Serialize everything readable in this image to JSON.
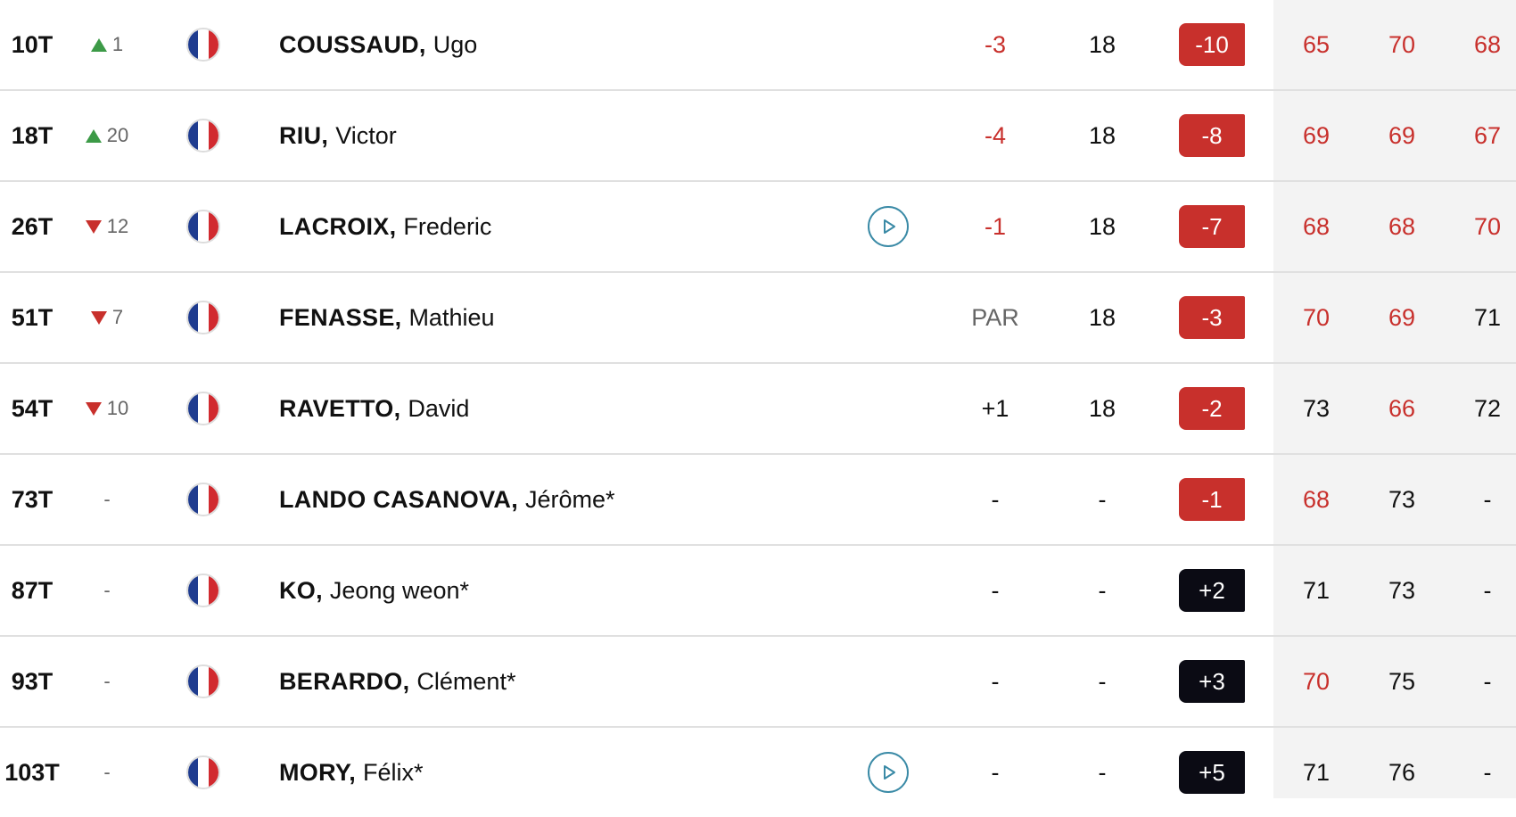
{
  "colors": {
    "under_par": "#c8302c",
    "over_par": "#0b0b14",
    "move_up": "#3c9a47",
    "move_down": "#c8302c",
    "video_accent": "#3a8aa6",
    "round_band": "#f3f3f3"
  },
  "rows": [
    {
      "pos": "10T",
      "move": {
        "dir": "up",
        "value": "1"
      },
      "country": "france-flag-icon",
      "surname": "COUSSAUD,",
      "given": "Ugo",
      "video": false,
      "today": "-3",
      "today_color": "red",
      "thru": "18",
      "total": "-10",
      "total_type": "under",
      "r1": "65",
      "r1_color": "red",
      "r2": "70",
      "r2_color": "red",
      "r3": "68",
      "r3_color": "red"
    },
    {
      "pos": "18T",
      "move": {
        "dir": "up",
        "value": "20"
      },
      "country": "france-flag-icon",
      "surname": "RIU,",
      "given": "Victor",
      "video": false,
      "today": "-4",
      "today_color": "red",
      "thru": "18",
      "total": "-8",
      "total_type": "under",
      "r1": "69",
      "r1_color": "red",
      "r2": "69",
      "r2_color": "red",
      "r3": "67",
      "r3_color": "red"
    },
    {
      "pos": "26T",
      "move": {
        "dir": "down",
        "value": "12"
      },
      "country": "france-flag-icon",
      "surname": "LACROIX,",
      "given": "Frederic",
      "video": true,
      "today": "-1",
      "today_color": "red",
      "thru": "18",
      "total": "-7",
      "total_type": "under",
      "r1": "68",
      "r1_color": "red",
      "r2": "68",
      "r2_color": "red",
      "r3": "70",
      "r3_color": "red"
    },
    {
      "pos": "51T",
      "move": {
        "dir": "down",
        "value": "7"
      },
      "country": "france-flag-icon",
      "surname": "FENASSE,",
      "given": "Mathieu",
      "video": false,
      "today": "PAR",
      "today_color": "grey",
      "thru": "18",
      "total": "-3",
      "total_type": "under",
      "r1": "70",
      "r1_color": "red",
      "r2": "69",
      "r2_color": "red",
      "r3": "71",
      "r3_color": "dark"
    },
    {
      "pos": "54T",
      "move": {
        "dir": "down",
        "value": "10"
      },
      "country": "france-flag-icon",
      "surname": "RAVETTO,",
      "given": "David",
      "video": false,
      "today": "+1",
      "today_color": "dark",
      "thru": "18",
      "total": "-2",
      "total_type": "under",
      "r1": "73",
      "r1_color": "dark",
      "r2": "66",
      "r2_color": "red",
      "r3": "72",
      "r3_color": "dark"
    },
    {
      "pos": "73T",
      "move": {
        "dir": "none",
        "value": "-"
      },
      "country": "france-flag-icon",
      "surname": "LANDO CASANOVA,",
      "given": "Jérôme*",
      "video": false,
      "today": "-",
      "today_color": "dark",
      "thru": "-",
      "total": "-1",
      "total_type": "under",
      "r1": "68",
      "r1_color": "red",
      "r2": "73",
      "r2_color": "dark",
      "r3": "-",
      "r3_color": "dark"
    },
    {
      "pos": "87T",
      "move": {
        "dir": "none",
        "value": "-"
      },
      "country": "france-flag-icon",
      "surname": "KO,",
      "given": "Jeong weon*",
      "video": false,
      "today": "-",
      "today_color": "dark",
      "thru": "-",
      "total": "+2",
      "total_type": "over",
      "r1": "71",
      "r1_color": "dark",
      "r2": "73",
      "r2_color": "dark",
      "r3": "-",
      "r3_color": "dark"
    },
    {
      "pos": "93T",
      "move": {
        "dir": "none",
        "value": "-"
      },
      "country": "france-flag-icon",
      "surname": "BERARDO,",
      "given": "Clément*",
      "video": false,
      "today": "-",
      "today_color": "dark",
      "thru": "-",
      "total": "+3",
      "total_type": "over",
      "r1": "70",
      "r1_color": "red",
      "r2": "75",
      "r2_color": "dark",
      "r3": "-",
      "r3_color": "dark"
    },
    {
      "pos": "103T",
      "move": {
        "dir": "none",
        "value": "-"
      },
      "country": "france-flag-icon",
      "surname": "MORY,",
      "given": "Félix*",
      "video": true,
      "today": "-",
      "today_color": "dark",
      "thru": "-",
      "total": "+5",
      "total_type": "over",
      "r1": "71",
      "r1_color": "dark",
      "r2": "76",
      "r2_color": "dark",
      "r3": "-",
      "r3_color": "dark"
    }
  ]
}
